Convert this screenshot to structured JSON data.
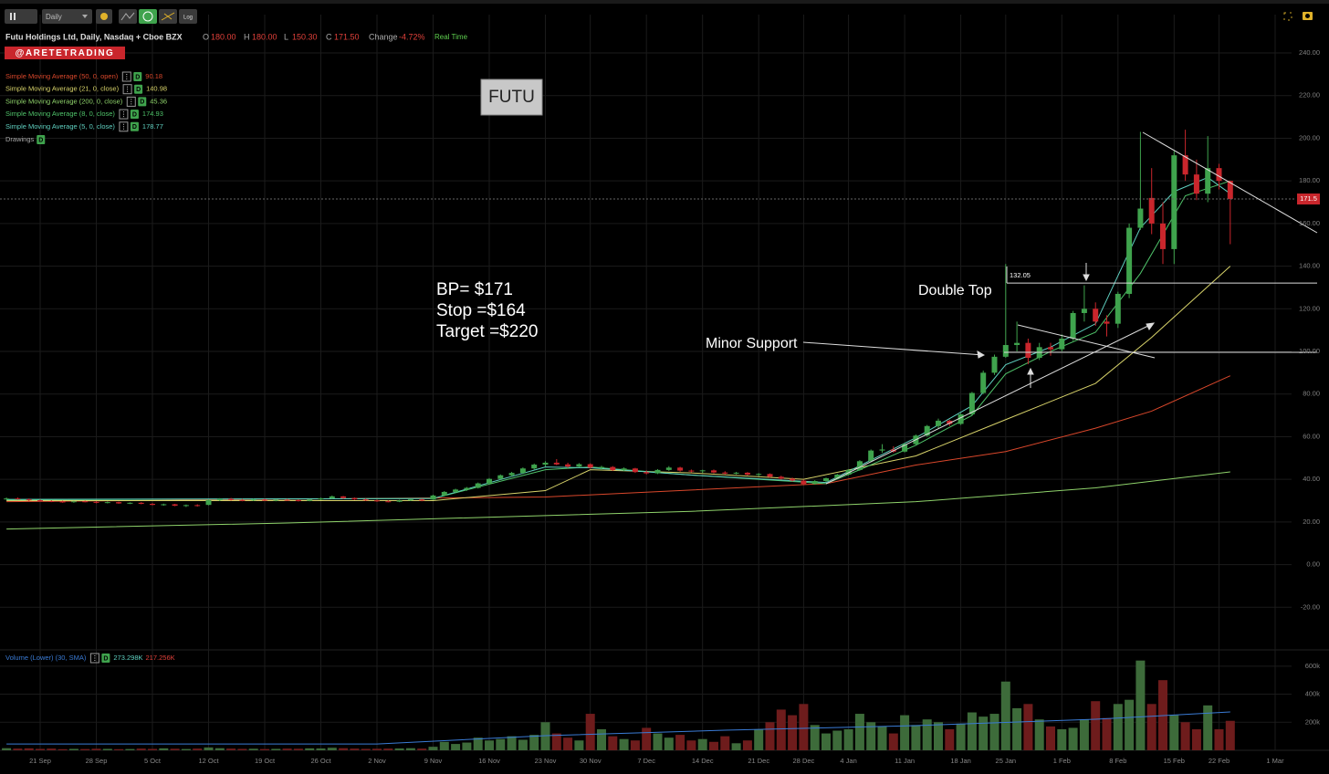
{
  "chart_data": {
    "type": "candlestick",
    "interval": "Daily",
    "log_button": "Log",
    "title": "Futu Holdings Ltd, Daily, Nasdaq + Cboe BZX",
    "ohlc_readout": [
      {
        "key": "O",
        "value": "180.00"
      },
      {
        "key": "H",
        "value": "180.00"
      },
      {
        "key": "L",
        "value": "150.30"
      },
      {
        "key": "C",
        "value": "171.50"
      }
    ],
    "change_label": "Change",
    "change": "-4.72%",
    "realtime": "Real Time",
    "watermark": "@ARETETRADING",
    "drawings": "Drawings",
    "badge": "D",
    "last_price": 171.5,
    "ylim": [
      -40,
      258
    ],
    "yticks": [
      {
        "value": -20,
        "label": "-20.00"
      },
      {
        "value": 0,
        "label": "0.00"
      },
      {
        "value": 20,
        "label": "20.00"
      },
      {
        "value": 40,
        "label": "40.00"
      },
      {
        "value": 60,
        "label": "60.00"
      },
      {
        "value": 80,
        "label": "80.00"
      },
      {
        "value": 100,
        "label": "100.00"
      },
      {
        "value": 120,
        "label": "120.00"
      },
      {
        "value": 140,
        "label": "140.00"
      },
      {
        "value": 160,
        "label": "160.00"
      },
      {
        "value": 180,
        "label": "180.00"
      },
      {
        "value": 200,
        "label": "200.00"
      },
      {
        "value": 220,
        "label": "220.00"
      },
      {
        "value": 240,
        "label": "240.00"
      }
    ],
    "grid": true,
    "up_color": "#3fa34d",
    "down_color": "#c9262c",
    "categories": [
      null,
      null,
      null,
      "21 Sep",
      null,
      null,
      null,
      null,
      "28 Sep",
      null,
      null,
      null,
      null,
      "5 Oct",
      null,
      null,
      null,
      null,
      "12 Oct",
      null,
      null,
      null,
      null,
      "19 Oct",
      null,
      null,
      null,
      null,
      "26 Oct",
      null,
      null,
      null,
      null,
      "2 Nov",
      null,
      null,
      null,
      null,
      "9 Nov",
      null,
      null,
      null,
      null,
      "16 Nov",
      null,
      null,
      null,
      null,
      "23 Nov",
      null,
      null,
      null,
      "30 Nov",
      null,
      null,
      null,
      null,
      "7 Dec",
      null,
      null,
      null,
      null,
      "14 Dec",
      null,
      null,
      null,
      null,
      "21 Dec",
      null,
      null,
      null,
      "28 Dec",
      null,
      null,
      null,
      "4 Jan",
      null,
      null,
      null,
      null,
      "11 Jan",
      null,
      null,
      null,
      null,
      "18 Jan",
      null,
      null,
      null,
      "25 Jan",
      null,
      null,
      null,
      null,
      "1 Feb",
      null,
      null,
      null,
      null,
      "8 Feb",
      null,
      null,
      null,
      null,
      "15 Feb",
      null,
      null,
      null,
      "22 Feb",
      null,
      null,
      null,
      null,
      "1 Mar"
    ],
    "ohlc": [
      [
        31,
        31.5,
        30.5,
        31
      ],
      [
        31,
        31.5,
        30.5,
        30.6
      ],
      [
        30.6,
        31,
        29.8,
        30.2
      ],
      [
        30.2,
        30.6,
        29.5,
        29.8
      ],
      [
        29.8,
        30.2,
        29.3,
        29.6
      ],
      [
        29.6,
        30,
        29,
        29.3
      ],
      [
        29.3,
        29.9,
        29,
        29.7
      ],
      [
        29.7,
        30,
        29.2,
        29.4
      ],
      [
        29.4,
        29.8,
        28.8,
        29.1
      ],
      [
        29.1,
        29.6,
        28.7,
        29.3
      ],
      [
        29.3,
        29.5,
        28.5,
        28.7
      ],
      [
        28.7,
        29.2,
        28.4,
        29
      ],
      [
        29,
        29.3,
        28.3,
        28.5
      ],
      [
        28.5,
        28.9,
        27.8,
        28
      ],
      [
        28,
        28.6,
        27.6,
        28.3
      ],
      [
        28.3,
        28.5,
        27.4,
        27.6
      ],
      [
        27.6,
        28.2,
        27,
        27.9
      ],
      [
        27.9,
        28.3,
        27.2,
        27.5
      ],
      [
        28,
        30.5,
        27.8,
        30.2
      ],
      [
        30.2,
        31.2,
        29.8,
        30.8
      ],
      [
        30.8,
        31.3,
        30,
        30.3
      ],
      [
        30.3,
        30.8,
        29.7,
        30.1
      ],
      [
        30.1,
        30.9,
        29.8,
        30.6
      ],
      [
        30.6,
        30.9,
        29.8,
        30
      ],
      [
        30,
        30.7,
        29.7,
        30.4
      ],
      [
        30.4,
        30.8,
        29.9,
        30.2
      ],
      [
        30.2,
        30.6,
        29.6,
        29.9
      ],
      [
        29.9,
        30.8,
        29.7,
        30.5
      ],
      [
        30.5,
        31.4,
        30.2,
        31.1
      ],
      [
        31.1,
        32.4,
        30.8,
        32
      ],
      [
        32,
        32.2,
        30.8,
        31.2
      ],
      [
        31.2,
        31.5,
        30.3,
        30.6
      ],
      [
        30.6,
        31,
        29.8,
        30.1
      ],
      [
        30.1,
        30.5,
        29.4,
        29.7
      ],
      [
        29.7,
        30.2,
        29.2,
        29.5
      ],
      [
        29.5,
        30.4,
        29.3,
        30.1
      ],
      [
        30.1,
        30.9,
        29.8,
        30.6
      ],
      [
        30.6,
        30.9,
        29.7,
        30
      ],
      [
        30.5,
        32.8,
        30.3,
        32.4
      ],
      [
        32.4,
        34.5,
        32,
        34.1
      ],
      [
        34.1,
        35.6,
        33.5,
        35.2
      ],
      [
        35.2,
        36.4,
        34.6,
        36
      ],
      [
        36,
        38.5,
        35.7,
        38.1
      ],
      [
        38.1,
        40.6,
        37.8,
        40.2
      ],
      [
        40.2,
        42.3,
        39.8,
        41.9
      ],
      [
        41.9,
        43.5,
        41.2,
        43
      ],
      [
        43,
        45.6,
        42.5,
        45.1
      ],
      [
        45.1,
        47.4,
        44.6,
        46.9
      ],
      [
        46.9,
        48.5,
        46,
        47.8
      ],
      [
        47.8,
        49.5,
        46.6,
        47
      ],
      [
        47,
        47.8,
        45.4,
        46
      ],
      [
        46,
        47.6,
        45.6,
        47.1
      ],
      [
        47.1,
        47.5,
        45,
        45.5
      ],
      [
        45.5,
        46.4,
        44.3,
        45.8
      ],
      [
        45.8,
        46.2,
        43.9,
        44.3
      ],
      [
        44.3,
        45.6,
        43.8,
        45.1
      ],
      [
        45.1,
        45.4,
        43,
        43.4
      ],
      [
        43.4,
        44.2,
        42.3,
        42.8
      ],
      [
        42.8,
        44.8,
        42.5,
        44.4
      ],
      [
        44.4,
        46.2,
        44,
        45.5
      ],
      [
        45.5,
        45.9,
        43.6,
        44.1
      ],
      [
        44.1,
        44.6,
        43.2,
        43.9
      ],
      [
        43.9,
        44.5,
        43,
        44.2
      ],
      [
        44.2,
        44.6,
        42.8,
        43.2
      ],
      [
        43.2,
        43.8,
        42.2,
        42.7
      ],
      [
        42.7,
        43.5,
        42.3,
        43.1
      ],
      [
        43.1,
        43.4,
        41.8,
        42.2
      ],
      [
        42.2,
        42.9,
        41.5,
        42.5
      ],
      [
        42.5,
        42.8,
        40.8,
        41.2
      ],
      [
        41.2,
        41.7,
        39.9,
        40.3
      ],
      [
        40.3,
        40.8,
        39,
        39.4
      ],
      [
        39.4,
        39.9,
        37.2,
        37.8
      ],
      [
        37.8,
        39.6,
        37.5,
        39.2
      ],
      [
        39.2,
        40.8,
        38.8,
        40.5
      ],
      [
        40.5,
        42.6,
        40.2,
        42.2
      ],
      [
        42.2,
        44.8,
        41.8,
        44.4
      ],
      [
        44.4,
        49,
        44,
        48.5
      ],
      [
        48.5,
        54,
        48,
        53.5
      ],
      [
        53.5,
        56.5,
        52.5,
        54
      ],
      [
        54,
        55.5,
        52.5,
        53
      ],
      [
        53,
        57,
        52.6,
        56.5
      ],
      [
        56.5,
        61,
        56,
        60.5
      ],
      [
        60.5,
        65.5,
        60,
        65
      ],
      [
        65,
        68.5,
        64,
        67.5
      ],
      [
        67.5,
        68,
        65,
        66
      ],
      [
        66,
        71,
        65.5,
        70.5
      ],
      [
        70.5,
        81,
        70,
        80.5
      ],
      [
        80.5,
        91,
        80,
        90
      ],
      [
        90,
        98.5,
        89,
        97.5
      ],
      [
        97.5,
        141,
        97,
        103
      ],
      [
        103,
        114,
        100,
        104
      ],
      [
        104,
        106,
        94,
        97
      ],
      [
        97,
        104,
        96,
        102
      ],
      [
        102,
        104,
        98,
        101
      ],
      [
        101,
        108,
        100,
        106
      ],
      [
        106,
        119,
        105,
        118
      ],
      [
        118,
        131,
        114,
        120
      ],
      [
        120,
        123,
        112,
        114
      ],
      [
        114,
        117,
        107,
        113
      ],
      [
        113,
        128,
        111,
        127
      ],
      [
        127,
        160,
        125,
        158
      ],
      [
        158,
        203,
        157,
        167
      ],
      [
        172,
        186,
        155,
        160
      ],
      [
        160,
        170,
        141,
        148
      ],
      [
        148,
        194,
        141,
        192
      ],
      [
        192,
        204,
        180,
        183
      ],
      [
        183,
        190,
        171,
        174
      ],
      [
        174,
        201,
        170,
        186
      ],
      [
        186,
        188,
        176,
        180
      ],
      [
        180,
        180,
        150.3,
        171.5
      ],
      null,
      null,
      null,
      null
    ],
    "series": [
      {
        "name": "Simple Moving Average (50, 0, open)",
        "color": "#d9472b",
        "last": 90.18,
        "x": [
          0,
          48,
          61,
          73,
          81,
          89,
          97,
          102,
          109
        ],
        "values": [
          29.5,
          31.7,
          35,
          38,
          46.7,
          53,
          64,
          72,
          88.6
        ]
      },
      {
        "name": "Simple Moving Average (21, 0, close)",
        "color": "#d8d36a",
        "last": 140.98,
        "x": [
          0,
          38,
          48,
          52,
          61,
          71,
          81,
          89,
          97,
          102,
          109
        ],
        "values": [
          30,
          30,
          34.7,
          44.5,
          43,
          40,
          51,
          68,
          85,
          106.6,
          140
        ]
      },
      {
        "name": "Simple Moving Average (200, 0, close)",
        "color": "#8fd36b",
        "last": 45.36,
        "x": [
          0,
          25,
          48,
          61,
          81,
          97,
          109
        ],
        "values": [
          16.7,
          19.5,
          23,
          25,
          29.5,
          36,
          43.5
        ]
      },
      {
        "name": "Simple Moving Average (8, 0, close)",
        "color": "#4fc36a",
        "last": 174.93,
        "x": [
          0,
          38,
          48,
          52,
          61,
          73,
          76,
          81,
          86,
          89,
          93,
          97,
          101,
          105,
          109
        ],
        "values": [
          30.4,
          31,
          44.5,
          45.8,
          42,
          38,
          44.5,
          56,
          70,
          89.5,
          100,
          109,
          136.6,
          173,
          180
        ]
      },
      {
        "name": "Simple Moving Average (5, 0, close)",
        "color": "#5fd0c0",
        "last": 178.77,
        "x": [
          0,
          38,
          48,
          52,
          61,
          73,
          81,
          86,
          89,
          93,
          97,
          101,
          104,
          107,
          109
        ],
        "values": [
          30.6,
          31,
          45.8,
          45.4,
          42,
          38.5,
          59.5,
          74.5,
          93.8,
          102,
          113,
          158,
          175,
          181.6,
          174
        ]
      }
    ],
    "volume": {
      "name": "Volume (Lower) (30, SMA)",
      "readouts": [
        "273.298K",
        "217.256K"
      ],
      "ylim": [
        0,
        716000
      ],
      "yticks": [
        {
          "value": 200000,
          "label": "200k"
        },
        {
          "value": 400000,
          "label": "400k"
        },
        {
          "value": 600000,
          "label": "600k"
        }
      ],
      "sma_color": "#3a7bd5",
      "values": [
        15000,
        12000,
        14000,
        10000,
        12000,
        8000,
        10000,
        9000,
        11000,
        10000,
        8000,
        9000,
        12000,
        10000,
        14000,
        11000,
        9000,
        12000,
        20000,
        15000,
        12000,
        10000,
        11000,
        9000,
        10000,
        12000,
        11000,
        14000,
        13000,
        18000,
        15000,
        12000,
        10000,
        11000,
        12000,
        13000,
        15000,
        12000,
        25000,
        60000,
        45000,
        55000,
        90000,
        70000,
        80000,
        100000,
        75000,
        110000,
        200000,
        120000,
        90000,
        70000,
        260000,
        150000,
        100000,
        80000,
        70000,
        160000,
        120000,
        90000,
        110000,
        70000,
        80000,
        60000,
        100000,
        50000,
        70000,
        150000,
        200000,
        290000,
        250000,
        330000,
        180000,
        120000,
        140000,
        150000,
        260000,
        200000,
        170000,
        120000,
        250000,
        180000,
        220000,
        200000,
        150000,
        190000,
        270000,
        240000,
        260000,
        490000,
        300000,
        330000,
        220000,
        170000,
        150000,
        160000,
        220000,
        350000,
        230000,
        330000,
        360000,
        640000,
        330000,
        500000,
        250000,
        200000,
        150000,
        320000,
        150000,
        210000,
        null,
        null,
        null,
        null
      ],
      "sma": {
        "x": [
          0,
          33,
          48,
          64,
          81,
          97,
          109
        ],
        "values": [
          45000,
          45000,
          104000,
          143000,
          176000,
          221000,
          273000
        ]
      }
    },
    "annotations": {
      "symbol": "FUTU",
      "plan": [
        "BP= $171",
        "Stop =$164",
        "Target =$220"
      ],
      "double_top": "Double Top",
      "double_top_level": 132.05,
      "minor_support": "Minor Support"
    }
  }
}
